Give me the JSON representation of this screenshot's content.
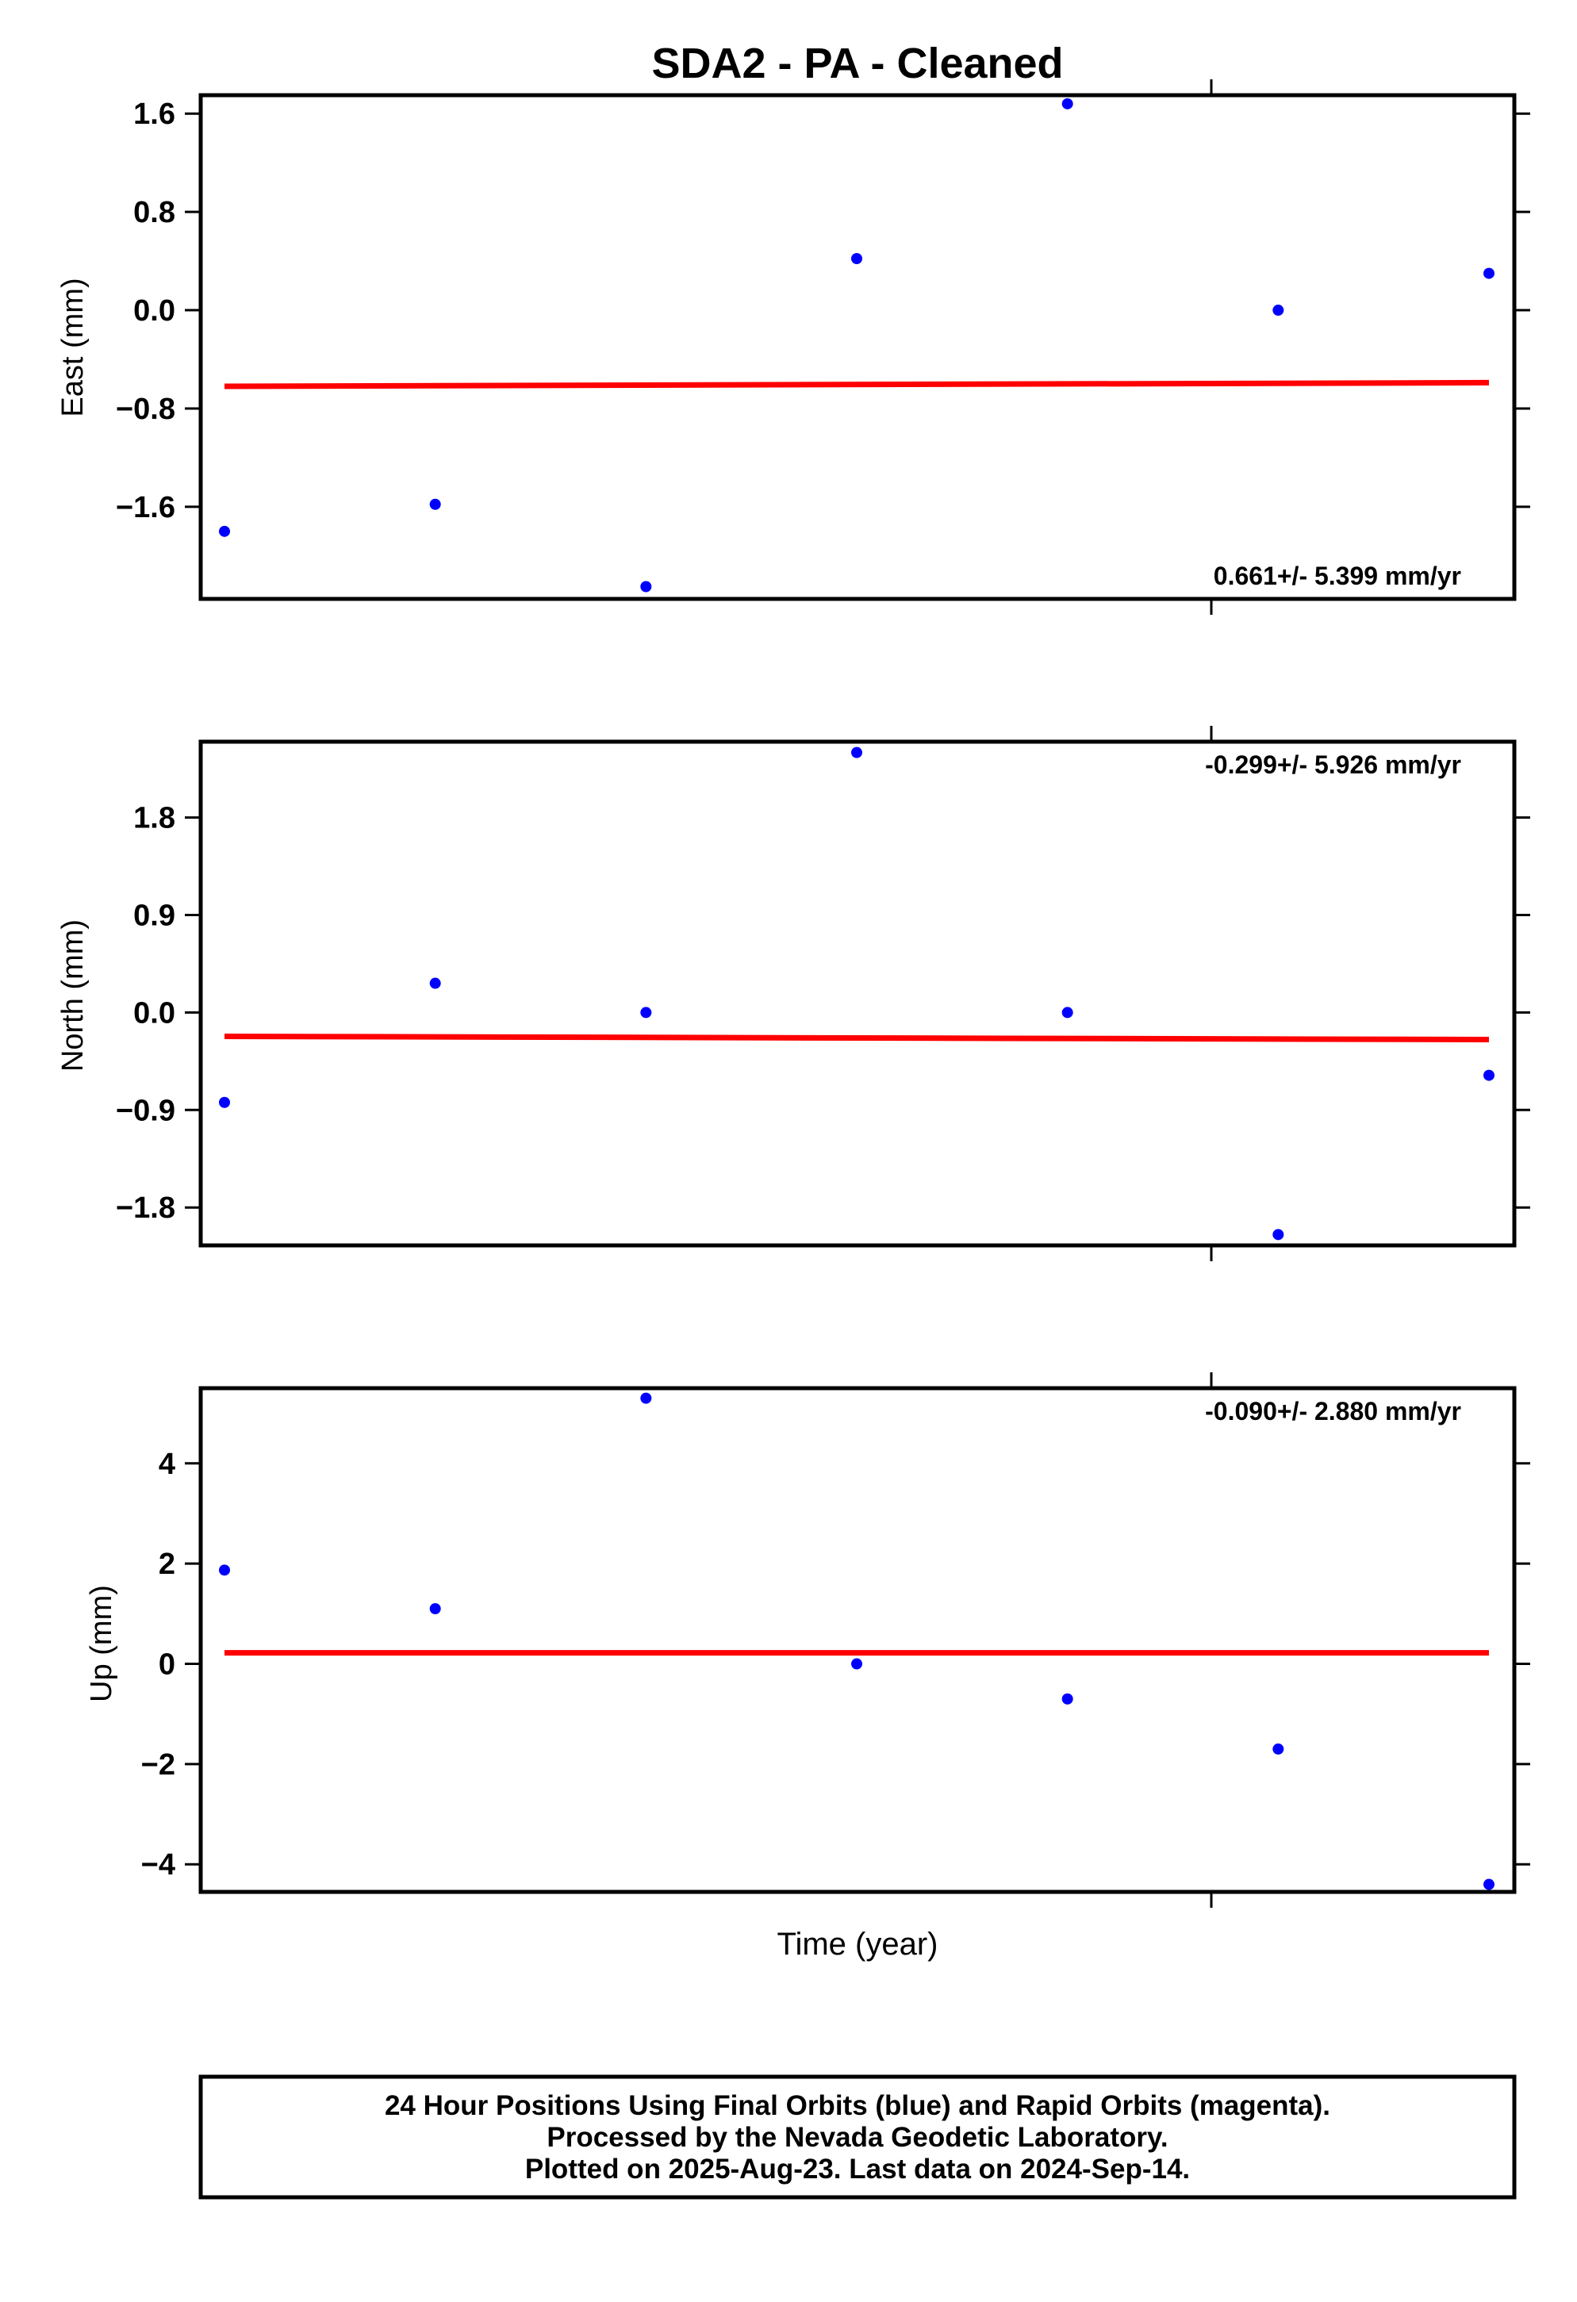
{
  "title": "SDA2  - PA - Cleaned",
  "xlabel": "Time (year)",
  "footer": {
    "line1": "24 Hour Positions Using Final Orbits (blue) and Rapid Orbits (magenta).",
    "line2": "Processed by the Nevada Geodetic Laboratory.",
    "line3": "Plotted on 2025-Aug-23. Last data on 2024-Sep-14."
  },
  "colors": {
    "final_points": "#0000ff",
    "trend_line": "#ff0000",
    "frame": "#000000"
  },
  "chart_data": [
    {
      "type": "scatter",
      "ylabel": "East (mm)",
      "rate_label": "0.661+/- 5.399 mm/yr",
      "rate_position": "bottom-right",
      "ylim": [
        -2.35,
        1.75
      ],
      "yticks": [
        1.6,
        0.8,
        0.0,
        -0.8,
        -1.6
      ],
      "ytick_labels": [
        "1.6",
        "0.8",
        "0.0",
        "−0.8",
        "−1.6"
      ],
      "x": [
        0,
        1,
        2,
        3,
        4,
        5,
        6
      ],
      "y": [
        -1.8,
        -1.58,
        -2.25,
        0.42,
        1.68,
        0.0,
        0.3
      ],
      "trend": {
        "y_start": -0.62,
        "y_end": -0.59
      }
    },
    {
      "type": "scatter",
      "ylabel": "North (mm)",
      "rate_label": "-0.299+/- 5.926 mm/yr",
      "rate_position": "top-right",
      "ylim": [
        -2.15,
        2.5
      ],
      "yticks": [
        1.8,
        0.9,
        0.0,
        -0.9,
        -1.8
      ],
      "ytick_labels": [
        "1.8",
        "0.9",
        "0.0",
        "−0.9",
        "−1.8"
      ],
      "x": [
        0,
        1,
        2,
        3,
        4,
        5,
        6
      ],
      "y": [
        -0.83,
        0.27,
        0.0,
        2.4,
        0.0,
        -2.05,
        -0.58
      ],
      "trend": {
        "y_start": -0.22,
        "y_end": -0.25
      }
    },
    {
      "type": "scatter",
      "ylabel": "Up (mm)",
      "rate_label": "-0.090+/- 2.880 mm/yr",
      "rate_position": "top-right",
      "ylim": [
        -4.55,
        5.5
      ],
      "yticks": [
        4,
        2,
        0,
        -2,
        -4
      ],
      "ytick_labels": [
        "4",
        "2",
        "0",
        "−2",
        "−4"
      ],
      "x": [
        0,
        1,
        2,
        3,
        4,
        5,
        6
      ],
      "y": [
        1.87,
        1.1,
        5.3,
        0.0,
        -0.7,
        -1.7,
        -4.4
      ],
      "trend": {
        "y_start": 0.22,
        "y_end": 0.22
      }
    }
  ]
}
